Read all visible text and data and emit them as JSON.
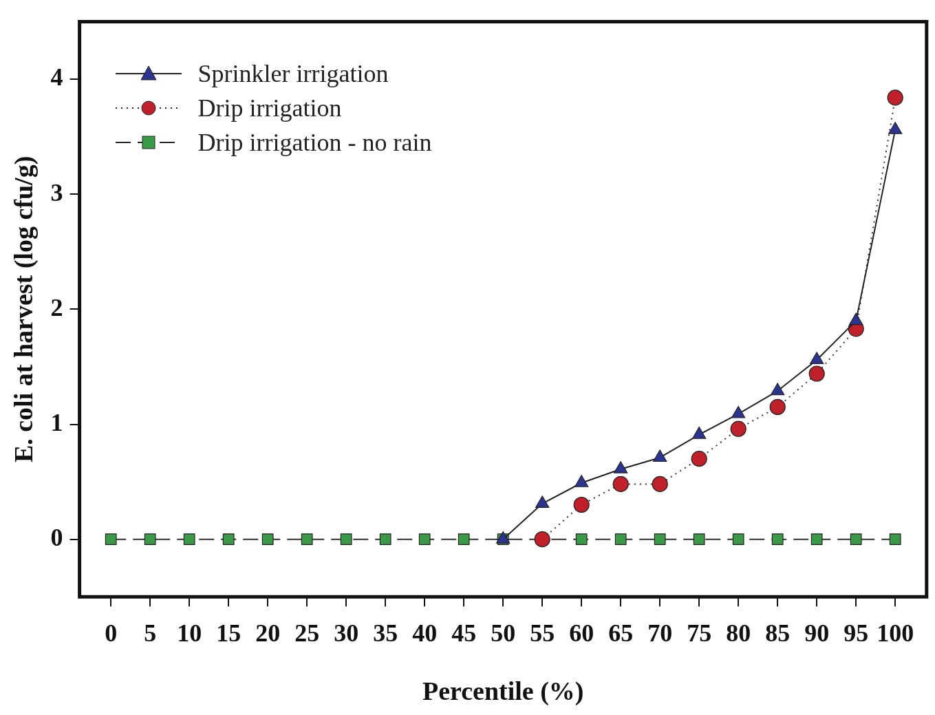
{
  "chart_data": {
    "type": "line",
    "xlabel": "Percentile (%)",
    "ylabel": "E. coli at harvest (log cfu/g)",
    "x": [
      0,
      5,
      10,
      15,
      20,
      25,
      30,
      35,
      40,
      45,
      50,
      55,
      60,
      65,
      70,
      75,
      80,
      85,
      90,
      95,
      100
    ],
    "xlim": [
      -4,
      104
    ],
    "xticks": [
      0,
      5,
      10,
      15,
      20,
      25,
      30,
      35,
      40,
      45,
      50,
      55,
      60,
      65,
      70,
      75,
      80,
      85,
      90,
      95,
      100
    ],
    "ylim": [
      -0.5,
      4.5
    ],
    "yticks": [
      0,
      1,
      2,
      3,
      4
    ],
    "grid": false,
    "legend": "top left",
    "series": [
      {
        "name": "Sprinkler irrigation",
        "color": "#2b3590",
        "marker": "triangle",
        "line_style": "solid",
        "values": [
          null,
          null,
          null,
          null,
          null,
          null,
          null,
          null,
          null,
          null,
          0,
          0.31,
          0.49,
          0.61,
          0.71,
          0.91,
          1.09,
          1.29,
          1.56,
          1.9,
          3.56
        ]
      },
      {
        "name": "Drip irrigation",
        "color": "#c0202a",
        "marker": "circle",
        "line_style": "dotted",
        "values": [
          null,
          null,
          null,
          null,
          null,
          null,
          null,
          null,
          null,
          null,
          null,
          0,
          0.3,
          0.48,
          0.48,
          0.7,
          0.96,
          1.15,
          1.44,
          1.83,
          3.84
        ]
      },
      {
        "name": "Drip irrigation - no rain",
        "color": "#3a9a48",
        "marker": "square",
        "line_style": "dashed",
        "values": [
          0,
          0,
          0,
          0,
          0,
          0,
          0,
          0,
          0,
          0,
          0,
          0,
          0,
          0,
          0,
          0,
          0,
          0,
          0,
          0,
          0
        ]
      }
    ]
  }
}
